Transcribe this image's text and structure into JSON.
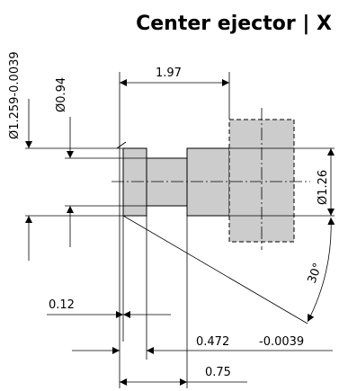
{
  "title": "Center ejector | X",
  "dimensions": {
    "dia_range": "Ø1.259-0.0039",
    "dia_small": "Ø0.94",
    "dia_head": "Ø1.26",
    "length_top": "1.97",
    "collar": "0.12",
    "shoulder": "0.472",
    "shoulder_tol": "-0.0039",
    "length_bottom": "0.75",
    "angle": "30°"
  },
  "colors": {
    "part_fill": "#cccccc",
    "line": "#000000",
    "background": "#ffffff"
  }
}
